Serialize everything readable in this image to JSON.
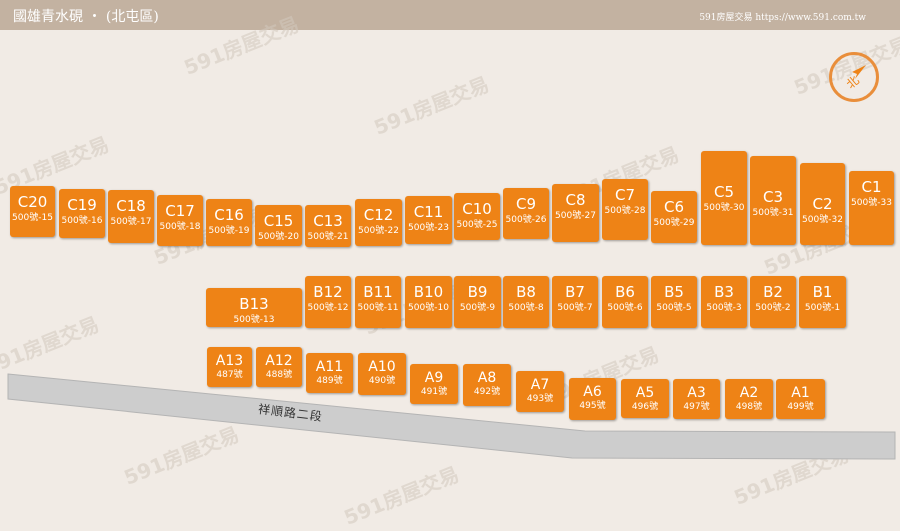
{
  "header": {
    "title": "國雄青水硯 ‧ (北屯區)",
    "site": "591房屋交易 https://www.591.com.tw"
  },
  "compass": {
    "label": "北"
  },
  "watermark": "591房屋交易",
  "road": {
    "label": "祥順路二段"
  },
  "lots_c": [
    {
      "code": "C20",
      "num": "500號-15"
    },
    {
      "code": "C19",
      "num": "500號-16"
    },
    {
      "code": "C18",
      "num": "500號-17"
    },
    {
      "code": "C17",
      "num": "500號-18"
    },
    {
      "code": "C16",
      "num": "500號-19"
    },
    {
      "code": "C15",
      "num": "500號-20"
    },
    {
      "code": "C13",
      "num": "500號-21"
    },
    {
      "code": "C12",
      "num": "500號-22"
    },
    {
      "code": "C11",
      "num": "500號-23"
    },
    {
      "code": "C10",
      "num": "500號-25"
    },
    {
      "code": "C9",
      "num": "500號-26"
    },
    {
      "code": "C8",
      "num": "500號-27"
    },
    {
      "code": "C7",
      "num": "500號-28"
    },
    {
      "code": "C6",
      "num": "500號-29"
    },
    {
      "code": "C5",
      "num": "500號-30"
    },
    {
      "code": "C3",
      "num": "500號-31"
    },
    {
      "code": "C2",
      "num": "500號-32"
    },
    {
      "code": "C1",
      "num": "500號-33"
    }
  ],
  "lots_b": [
    {
      "code": "B13",
      "num": "500號-13"
    },
    {
      "code": "B12",
      "num": "500號-12"
    },
    {
      "code": "B11",
      "num": "500號-11"
    },
    {
      "code": "B10",
      "num": "500號-10"
    },
    {
      "code": "B9",
      "num": "500號-9"
    },
    {
      "code": "B8",
      "num": "500號-8"
    },
    {
      "code": "B7",
      "num": "500號-7"
    },
    {
      "code": "B6",
      "num": "500號-6"
    },
    {
      "code": "B5",
      "num": "500號-5"
    },
    {
      "code": "B3",
      "num": "500號-3"
    },
    {
      "code": "B2",
      "num": "500號-2"
    },
    {
      "code": "B1",
      "num": "500號-1"
    }
  ],
  "lots_a": [
    {
      "code": "A13",
      "num": "487號"
    },
    {
      "code": "A12",
      "num": "488號"
    },
    {
      "code": "A11",
      "num": "489號"
    },
    {
      "code": "A10",
      "num": "490號"
    },
    {
      "code": "A9",
      "num": "491號"
    },
    {
      "code": "A8",
      "num": "492號"
    },
    {
      "code": "A7",
      "num": "493號"
    },
    {
      "code": "A6",
      "num": "495號"
    },
    {
      "code": "A5",
      "num": "496號"
    },
    {
      "code": "A3",
      "num": "497號"
    },
    {
      "code": "A2",
      "num": "498號"
    },
    {
      "code": "A1",
      "num": "499號"
    }
  ]
}
